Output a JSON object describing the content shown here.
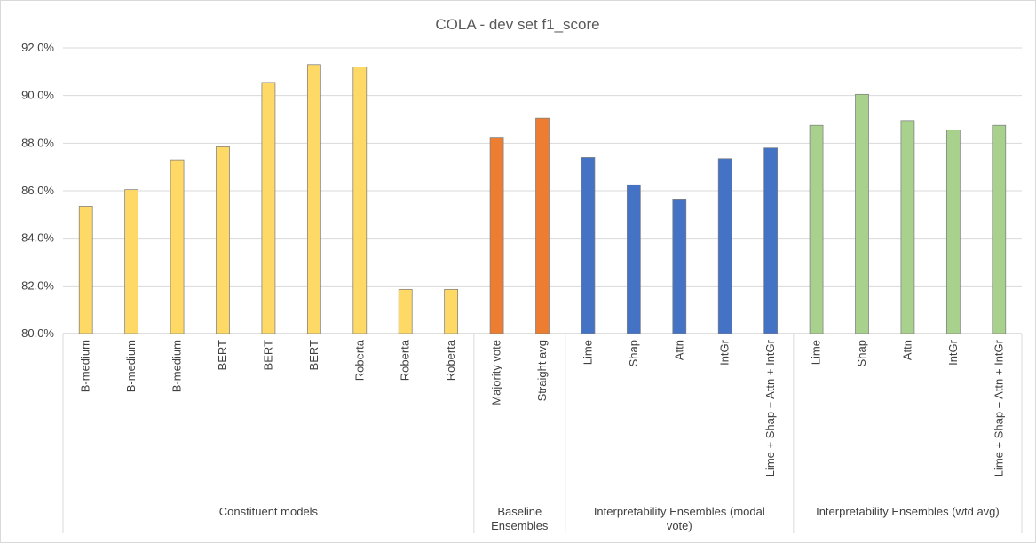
{
  "chart_data": {
    "type": "bar",
    "title": "COLA - dev set f1_score",
    "xlabel": "",
    "ylabel": "",
    "ylim": [
      80.0,
      92.0
    ],
    "yticks": [
      "80.0%",
      "82.0%",
      "84.0%",
      "86.0%",
      "88.0%",
      "90.0%",
      "92.0%"
    ],
    "grid": true,
    "legend": "none",
    "groups": [
      {
        "name": "Constituent models",
        "color": "#FFD966",
        "categories": [
          "B-medium",
          "B-medium",
          "B-medium",
          "BERT",
          "BERT",
          "BERT",
          "Roberta",
          "Roberta",
          "Roberta"
        ],
        "values": [
          85.35,
          86.05,
          87.3,
          87.85,
          90.55,
          91.3,
          91.2,
          81.85,
          81.85
        ]
      },
      {
        "name": "Baseline Ensembles",
        "color": "#ED7D31",
        "categories": [
          "Majority vote",
          "Straight avg"
        ],
        "values": [
          88.25,
          89.05
        ]
      },
      {
        "name": "Interpretability Ensembles (modal vote)",
        "color": "#4472C4",
        "categories": [
          "Lime",
          "Shap",
          "Attn",
          "IntGr",
          "Lime + Shap + Attn + IntGr"
        ],
        "values": [
          87.4,
          86.25,
          85.65,
          87.35,
          87.8
        ]
      },
      {
        "name": "Interpretability Ensembles (wtd avg)",
        "color": "#A9D18E",
        "categories": [
          "Lime",
          "Shap",
          "Attn",
          "IntGr",
          "Lime + Shap + Attn + IntGr"
        ],
        "values": [
          88.75,
          90.05,
          88.95,
          88.55,
          88.75
        ]
      }
    ]
  }
}
